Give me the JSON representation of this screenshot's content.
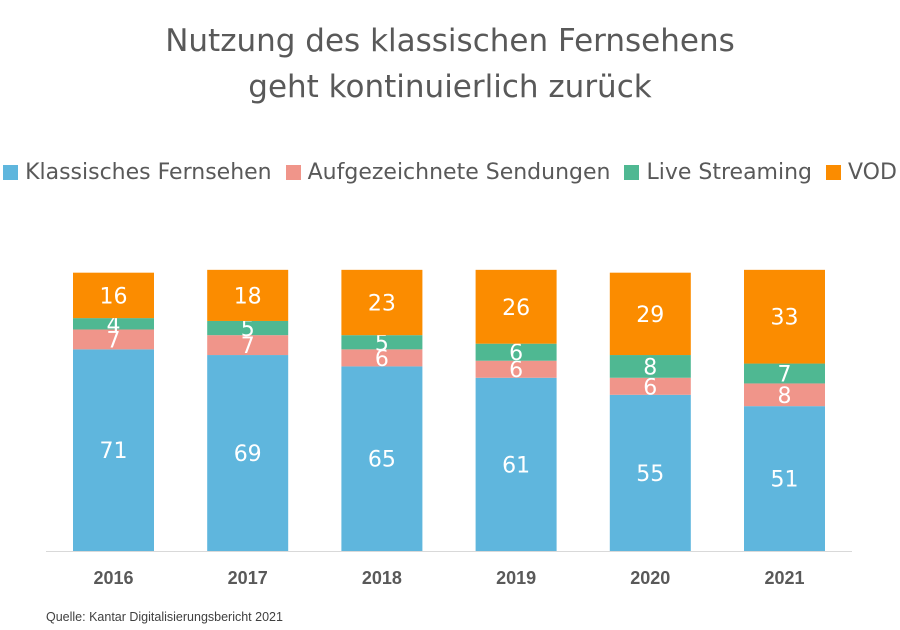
{
  "chart_data": {
    "type": "bar",
    "stacked": true,
    "title_lines": [
      "Nutzung des klassischen Fernsehens",
      "geht kontinuierlich zurück"
    ],
    "categories": [
      "2016",
      "2017",
      "2018",
      "2019",
      "2020",
      "2021"
    ],
    "series": [
      {
        "name": "Klassisches Fernsehen",
        "color": "#5fb6dd",
        "values": [
          71,
          69,
          65,
          61,
          55,
          51
        ]
      },
      {
        "name": "Aufgezeichnete Sendungen",
        "color": "#f0958a",
        "values": [
          7,
          7,
          6,
          6,
          6,
          8
        ]
      },
      {
        "name": "Live Streaming",
        "color": "#4fb892",
        "values": [
          4,
          5,
          5,
          6,
          8,
          7
        ]
      },
      {
        "name": "VOD",
        "color": "#fb8c00",
        "values": [
          16,
          18,
          23,
          26,
          29,
          33
        ]
      }
    ],
    "legend_position": "top",
    "grid": false,
    "value_axis_visible": false
  },
  "source": "Quelle: Kantar Digitalisierungsbericht 2021"
}
